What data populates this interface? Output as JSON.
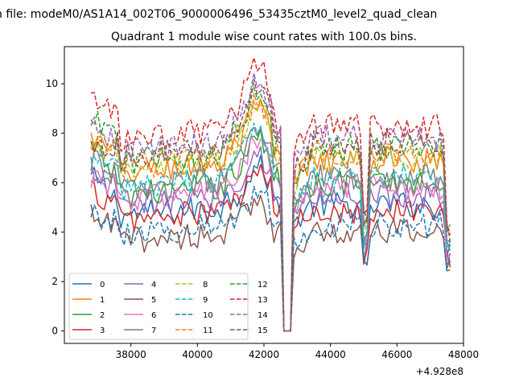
{
  "figure": {
    "suptitle": "n file: modeM0/AS1A14_002T06_9000006496_53435cztM0_level2_quad_clean",
    "title": "Quadrant 1 module wise count rates with 100.0s bins."
  },
  "chart_data": {
    "type": "line",
    "title": "Quadrant 1 module wise count rates with 100.0s bins.",
    "xlabel": "",
    "ylabel": "",
    "x_offset_label": "+4.928e8",
    "xlim": [
      36000,
      48000
    ],
    "ylim": [
      -0.5,
      11.5
    ],
    "x_ticks": [
      38000,
      40000,
      42000,
      44000,
      46000,
      48000
    ],
    "x_tick_labels": [
      "38000",
      "40000",
      "42000",
      "44000",
      "46000",
      "48000"
    ],
    "y_ticks": [
      0,
      2,
      4,
      6,
      8,
      10
    ],
    "y_tick_labels": [
      "0",
      "2",
      "4",
      "6",
      "8",
      "10"
    ],
    "grid": false,
    "legend_placement": "lower-left",
    "legend_columns": 4,
    "x_segments": [
      [
        36800,
        42500
      ],
      [
        42600,
        42800
      ],
      [
        42900,
        47600
      ]
    ],
    "series": [
      {
        "name": "0",
        "color": "#1f77b4",
        "dash": "solid",
        "level": 5.1,
        "start": 6.2,
        "end": 3.0
      },
      {
        "name": "1",
        "color": "#ff7f0e",
        "dash": "solid",
        "level": 6.9,
        "start": 7.8,
        "end": 3.3
      },
      {
        "name": "2",
        "color": "#2ca02c",
        "dash": "solid",
        "level": 6.0,
        "start": 7.4,
        "end": 3.2
      },
      {
        "name": "3",
        "color": "#d62728",
        "dash": "solid",
        "level": 4.9,
        "start": 5.7,
        "end": 2.9
      },
      {
        "name": "4",
        "color": "#9467bd",
        "dash": "solid",
        "level": 5.5,
        "start": 6.6,
        "end": 3.0
      },
      {
        "name": "5",
        "color": "#8c564b",
        "dash": "solid",
        "level": 4.0,
        "start": 4.6,
        "end": 2.6
      },
      {
        "name": "6",
        "color": "#e377c2",
        "dash": "solid",
        "level": 5.8,
        "start": 6.3,
        "end": 3.2
      },
      {
        "name": "7",
        "color": "#7f7f7f",
        "dash": "solid",
        "level": 6.2,
        "start": 6.9,
        "end": 3.2
      },
      {
        "name": "8",
        "color": "#bcbd22",
        "dash": "dashed",
        "level": 7.0,
        "start": 8.0,
        "end": 3.6
      },
      {
        "name": "9",
        "color": "#17becf",
        "dash": "dashed",
        "level": 6.3,
        "start": 7.1,
        "end": 3.4
      },
      {
        "name": "10",
        "color": "#1f77b4",
        "dash": "dashed",
        "level": 4.3,
        "start": 4.8,
        "end": 2.8
      },
      {
        "name": "11",
        "color": "#ff7f0e",
        "dash": "dashed",
        "level": 7.2,
        "start": 7.6,
        "end": 3.6
      },
      {
        "name": "12",
        "color": "#2ca02c",
        "dash": "dashed",
        "level": 7.4,
        "start": 8.6,
        "end": 3.8
      },
      {
        "name": "13",
        "color": "#d62728",
        "dash": "dashed",
        "level": 8.3,
        "start": 9.6,
        "end": 4.4
      },
      {
        "name": "14",
        "color": "#9467bd",
        "dash": "dashed",
        "level": 7.8,
        "start": 8.2,
        "end": 4.0
      },
      {
        "name": "15",
        "color": "#8c564b",
        "dash": "dashed",
        "level": 7.6,
        "start": 7.5,
        "end": 3.9
      }
    ]
  }
}
